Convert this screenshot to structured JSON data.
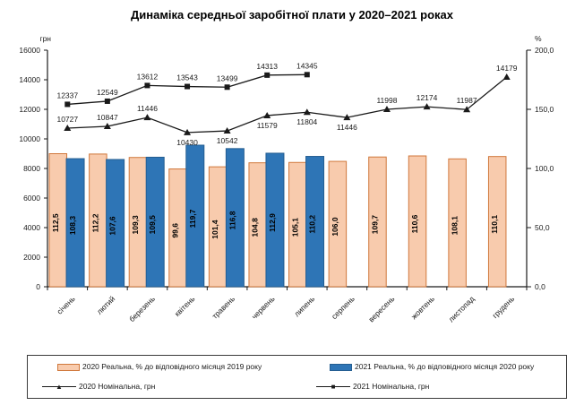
{
  "title": "Динаміка середньої заробітної плати у 2020–2021 роках",
  "left_axis": {
    "unit": "грн",
    "min": 0,
    "max": 16000,
    "tick_values": [
      0,
      2000,
      4000,
      6000,
      8000,
      10000,
      12000,
      14000,
      16000
    ],
    "tick_labels": [
      "0",
      "2000",
      "4000",
      "6000",
      "8000",
      "10000",
      "12000",
      "14000",
      "16000"
    ]
  },
  "right_axis": {
    "unit": "%",
    "min": 0,
    "max": 200,
    "tick_values": [
      0,
      50,
      100,
      150,
      200
    ],
    "tick_labels": [
      "0,0",
      "50,0",
      "100,0",
      "150,0",
      "200,0"
    ]
  },
  "chart_data": {
    "type": "bar+line combo",
    "grid": "off",
    "legend_position": "bottom-box",
    "categories": [
      "січень",
      "лютий",
      "березень",
      "квітень",
      "травень",
      "червень",
      "липень",
      "серпень",
      "вересень",
      "жовтень",
      "листопад",
      "грудень"
    ],
    "series": [
      {
        "name": "2020 Реальна, % до відповідного місяця 2019 року",
        "type": "bar",
        "axis": "right",
        "color": "#F8CBAD",
        "border": "#D0783C",
        "values": [
          112.5,
          112.2,
          109.3,
          99.6,
          101.4,
          104.8,
          105.1,
          106.0,
          109.7,
          110.6,
          108.1,
          110.1
        ]
      },
      {
        "name": "2021 Реальна, % до відповідного місяця 2020 року",
        "type": "bar",
        "axis": "right",
        "color": "#2E75B6",
        "border": "#255E91",
        "values": [
          108.3,
          107.6,
          109.5,
          119.7,
          116.8,
          112.9,
          110.2
        ]
      },
      {
        "name": "2020 Номінальна, грн",
        "type": "line",
        "axis": "left",
        "marker": "triangle",
        "color": "#1a1a1a",
        "values": [
          10727,
          10847,
          11446,
          10430,
          10542,
          11579,
          11804,
          11446,
          11998,
          12174,
          11987,
          14179
        ],
        "label_position": [
          "above",
          "above",
          "above",
          "below",
          "below",
          "below",
          "below",
          "below",
          "above",
          "above",
          "above",
          "above"
        ]
      },
      {
        "name": "2021 Номінальна, грн",
        "type": "line",
        "axis": "left",
        "marker": "square",
        "color": "#1a1a1a",
        "values": [
          12337,
          12549,
          13612,
          13543,
          13499,
          14313,
          14345
        ],
        "label_position": [
          "above",
          "above",
          "above",
          "above",
          "above",
          "above",
          "above"
        ]
      }
    ]
  }
}
